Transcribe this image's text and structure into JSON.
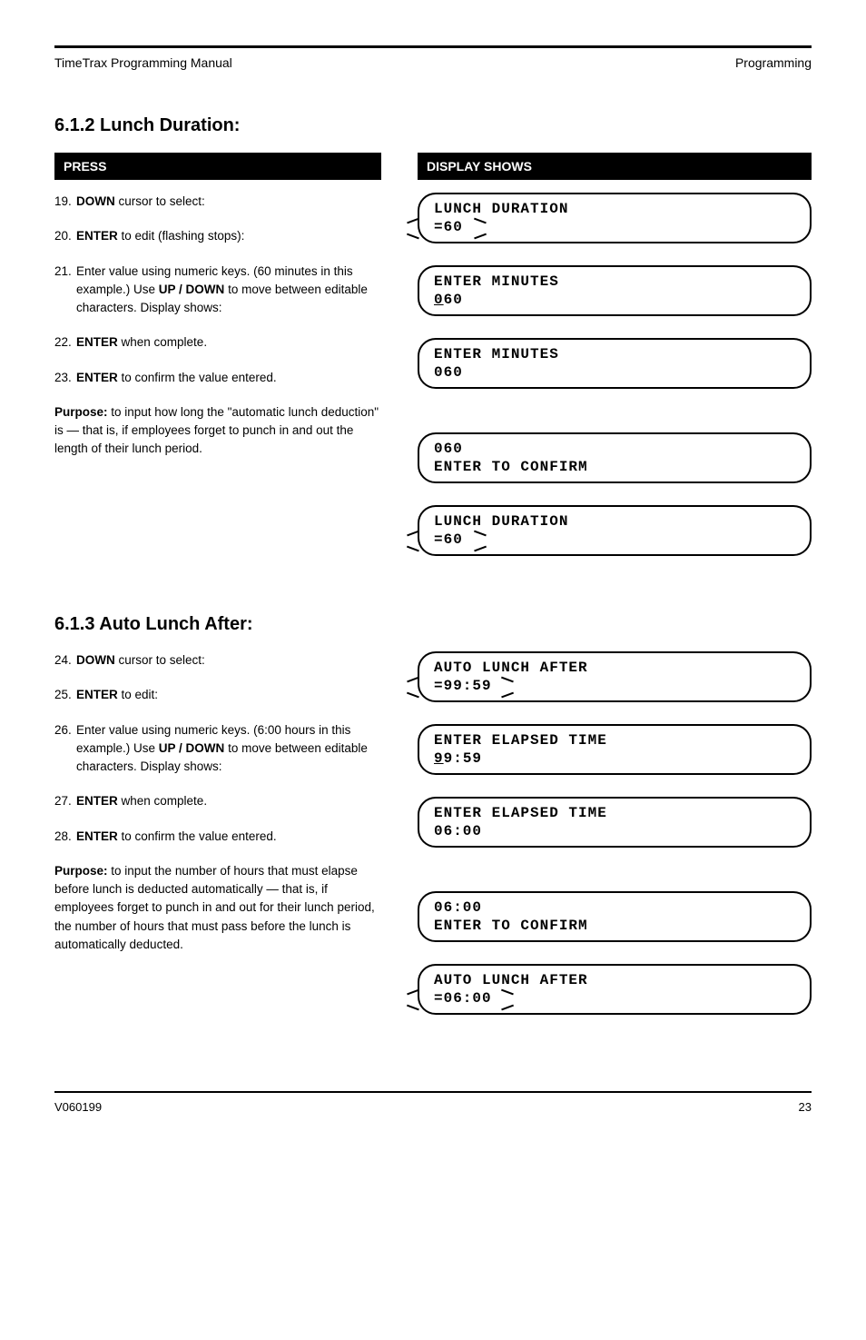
{
  "header": {
    "manual_title": "TimeTrax Programming Manual",
    "section": "Programming"
  },
  "section1": {
    "title": "6.1.2 Lunch Duration:",
    "press_header": "PRESS",
    "display_header": "DISPLAY SHOWS",
    "steps": [
      {
        "num": "19.",
        "html": "<span class='b'>DOWN</span> cursor to select:"
      },
      {
        "num": "20.",
        "html": "<span class='b'>ENTER</span> to edit (flashing stops):"
      },
      {
        "num": "21.",
        "html": "Enter value using numeric keys. (60 minutes in this example.) Use <span class='b'>UP / DOWN</span> to move between editable characters. Display shows:"
      },
      {
        "num": "22.",
        "html": "<span class='b'>ENTER</span> when complete."
      },
      {
        "num": "23.",
        "html": "<span class='b'>ENTER</span> to confirm the value entered."
      }
    ],
    "lcds": [
      {
        "l1": "LUNCH DURATION",
        "l2": "=60",
        "marks": true
      },
      {
        "l1": "ENTER MINUTES",
        "l2u": "0",
        "l2r": "60"
      },
      {
        "l1": "ENTER MINUTES",
        "l2": "060"
      },
      {
        "l1": "060",
        "l2": "ENTER TO CONFIRM"
      },
      {
        "l1": "LUNCH DURATION",
        "l2": "=60",
        "marks": true
      }
    ],
    "purpose": "<span class='b'>Purpose:</span> to input how long the \"automatic lunch deduction\" is — that is, if employees forget to punch in and out the length of their lunch period."
  },
  "section2": {
    "title": "6.1.3 Auto Lunch After:",
    "steps": [
      {
        "num": "24.",
        "html": "<span class='b'>DOWN</span> cursor to select:"
      },
      {
        "num": "25.",
        "html": "<span class='b'>ENTER</span> to edit:"
      },
      {
        "num": "26.",
        "html": "Enter value using numeric keys. (6:00 hours in this example.) Use <span class='b'>UP / DOWN</span> to move between editable characters. Display shows:"
      },
      {
        "num": "27.",
        "html": "<span class='b'>ENTER</span> when complete."
      },
      {
        "num": "28.",
        "html": "<span class='b'>ENTER</span> to confirm the value entered."
      }
    ],
    "lcds": [
      {
        "l1": "AUTO LUNCH AFTER",
        "l2": "=99:59",
        "marks": true,
        "wide": true
      },
      {
        "l1": "ENTER ELAPSED TIME",
        "l2u": "9",
        "l2r": "9:59"
      },
      {
        "l1": "ENTER ELAPSED TIME",
        "l2": "06:00"
      },
      {
        "l1": "06:00",
        "l2": "ENTER TO CONFIRM"
      },
      {
        "l1": "AUTO LUNCH AFTER",
        "l2": "=06:00",
        "marks": true,
        "wide": true
      }
    ],
    "purpose": "<span class='b'>Purpose:</span> to input the number of hours that must elapse before lunch is deducted automatically — that is, if employees forget to punch in and out for their lunch period, the number of hours that must pass before the lunch is automatically deducted."
  },
  "footer": {
    "page": "23",
    "version": "V060199"
  }
}
